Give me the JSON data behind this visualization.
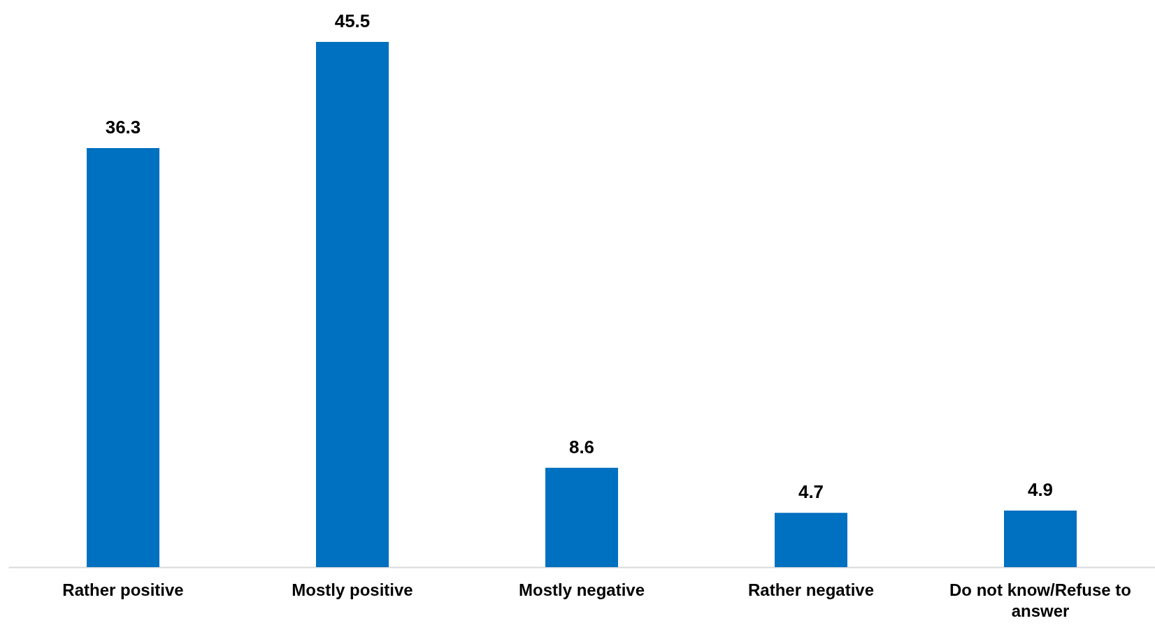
{
  "chart_data": {
    "type": "bar",
    "categories": [
      "Rather positive",
      "Mostly positive",
      "Mostly negative",
      "Rather negative",
      "Do not know/Refuse to answer"
    ],
    "values": [
      36.3,
      45.5,
      8.6,
      4.7,
      4.9
    ],
    "color": "#0070c0",
    "data_labels": true
  }
}
